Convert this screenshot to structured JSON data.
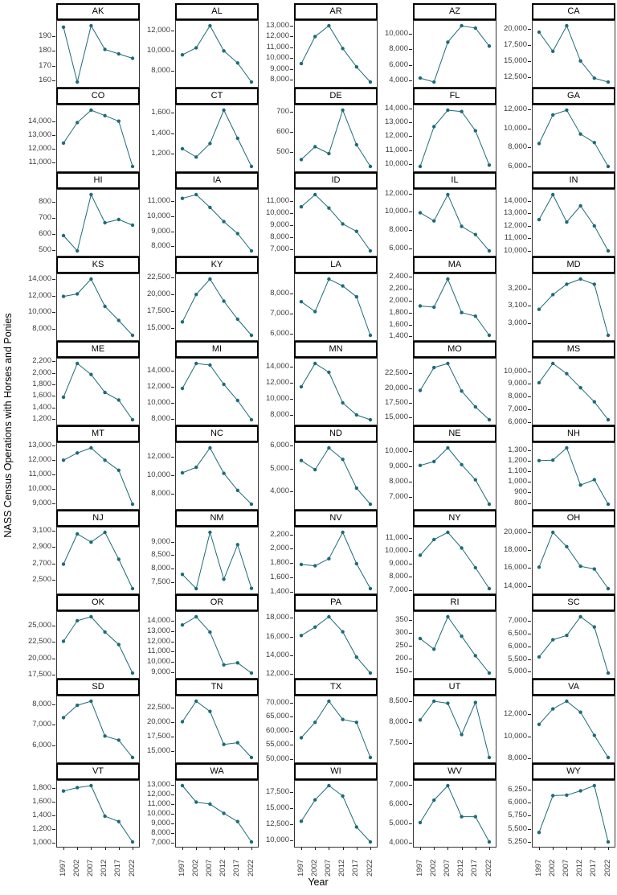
{
  "chart_data": {
    "type": "line",
    "title": "",
    "xlabel": "Year",
    "ylabel": "NASS Census Operations with Horses and Ponies",
    "x": [
      1997,
      2002,
      2007,
      2012,
      2017,
      2022
    ],
    "line_color": "#1d6b78",
    "point_color": "#1d6b78",
    "grid": "off",
    "layout": "facet-grid-5x10-free-y",
    "facets": [
      {
        "state": "AK",
        "yticks": [
          160,
          170,
          180,
          190
        ],
        "values": [
          196,
          159,
          197,
          181,
          178,
          175
        ]
      },
      {
        "state": "AL",
        "yticks": [
          8000,
          10000,
          12000
        ],
        "values": [
          9600,
          10300,
          12500,
          10000,
          8800,
          6900
        ]
      },
      {
        "state": "AR",
        "yticks": [
          8000,
          9000,
          10000,
          11000,
          12000,
          13000
        ],
        "values": [
          9500,
          12000,
          13000,
          10900,
          9200,
          7800
        ]
      },
      {
        "state": "AZ",
        "yticks": [
          4000,
          6000,
          8000,
          10000
        ],
        "values": [
          4300,
          3800,
          8900,
          11000,
          10700,
          8400
        ]
      },
      {
        "state": "CA",
        "yticks": [
          12500,
          15000,
          17500,
          20000
        ],
        "values": [
          19500,
          16500,
          20500,
          15000,
          12300,
          11700
        ]
      },
      {
        "state": "CO",
        "yticks": [
          11000,
          12000,
          13000,
          14000
        ],
        "values": [
          12400,
          13900,
          14800,
          14400,
          14000,
          10700
        ]
      },
      {
        "state": "CT",
        "yticks": [
          1200,
          1400,
          1600
        ],
        "values": [
          1250,
          1170,
          1300,
          1620,
          1350,
          1080
        ]
      },
      {
        "state": "DE",
        "yticks": [
          500,
          600,
          700
        ],
        "values": [
          460,
          525,
          490,
          710,
          535,
          425
        ]
      },
      {
        "state": "FL",
        "yticks": [
          10000,
          11000,
          12000,
          13000,
          14000
        ],
        "values": [
          9800,
          12700,
          13900,
          13800,
          12400,
          9900
        ]
      },
      {
        "state": "GA",
        "yticks": [
          6000,
          8000,
          10000,
          12000
        ],
        "values": [
          8400,
          11400,
          11900,
          9400,
          8500,
          6000
        ]
      },
      {
        "state": "HI",
        "yticks": [
          500,
          600,
          700,
          800
        ],
        "values": [
          590,
          495,
          845,
          670,
          690,
          655
        ]
      },
      {
        "state": "IA",
        "yticks": [
          8000,
          9000,
          10000,
          11000
        ],
        "values": [
          11200,
          11450,
          10600,
          9650,
          8850,
          7700
        ]
      },
      {
        "state": "ID",
        "yticks": [
          7000,
          8000,
          9000,
          10000,
          11000
        ],
        "values": [
          10500,
          11500,
          10400,
          9100,
          8500,
          6900
        ]
      },
      {
        "state": "IL",
        "yticks": [
          6000,
          8000,
          10000,
          12000
        ],
        "values": [
          9900,
          9000,
          11900,
          8400,
          7500,
          5700
        ]
      },
      {
        "state": "IN",
        "yticks": [
          10000,
          11000,
          12000,
          13000,
          14000
        ],
        "values": [
          12500,
          14500,
          12300,
          13600,
          12000,
          10000
        ]
      },
      {
        "state": "KS",
        "yticks": [
          8000,
          10000,
          12000,
          14000
        ],
        "values": [
          11900,
          12200,
          14000,
          10700,
          9000,
          7200
        ]
      },
      {
        "state": "KY",
        "yticks": [
          15000,
          17500,
          20000,
          22500
        ],
        "values": [
          15900,
          20000,
          22300,
          19000,
          16300,
          13900
        ]
      },
      {
        "state": "LA",
        "yticks": [
          6000,
          7000,
          8000
        ],
        "values": [
          7600,
          7100,
          8750,
          8400,
          7850,
          5900
        ]
      },
      {
        "state": "MA",
        "yticks": [
          1400,
          1600,
          1800,
          2000,
          2200,
          2400
        ],
        "values": [
          1910,
          1890,
          2360,
          1800,
          1740,
          1420
        ]
      },
      {
        "state": "MD",
        "yticks": [
          3000,
          3100,
          3200
        ],
        "values": [
          3080,
          3165,
          3225,
          3255,
          3225,
          2930
        ]
      },
      {
        "state": "ME",
        "yticks": [
          1200,
          1400,
          1600,
          1800,
          2000,
          2200
        ],
        "values": [
          1580,
          2160,
          1970,
          1660,
          1530,
          1190
        ]
      },
      {
        "state": "MI",
        "yticks": [
          8000,
          10000,
          12000,
          14000
        ],
        "values": [
          11800,
          14900,
          14700,
          12300,
          10300,
          7900
        ]
      },
      {
        "state": "MN",
        "yticks": [
          8000,
          10000,
          12000,
          14000
        ],
        "values": [
          11500,
          14400,
          13300,
          9500,
          8000,
          7400
        ]
      },
      {
        "state": "MO",
        "yticks": [
          15000,
          17500,
          20000,
          22500
        ],
        "values": [
          19600,
          23500,
          24200,
          19500,
          16800,
          14600
        ]
      },
      {
        "state": "MS",
        "yticks": [
          6000,
          7000,
          8000,
          9000,
          10000
        ],
        "values": [
          9100,
          10600,
          9800,
          8700,
          7600,
          6200
        ]
      },
      {
        "state": "MT",
        "yticks": [
          9000,
          10000,
          11000,
          12000,
          13000
        ],
        "values": [
          12000,
          12500,
          12850,
          12000,
          11300,
          8950
        ]
      },
      {
        "state": "NC",
        "yticks": [
          8000,
          10000,
          12000
        ],
        "values": [
          10300,
          10900,
          13000,
          10250,
          8400,
          6900
        ]
      },
      {
        "state": "ND",
        "yticks": [
          4000,
          5000,
          6000
        ],
        "values": [
          5350,
          4950,
          5900,
          5400,
          4150,
          3450
        ]
      },
      {
        "state": "NE",
        "yticks": [
          7000,
          8000,
          9000,
          10000
        ],
        "values": [
          9050,
          9300,
          10200,
          9100,
          8100,
          6500
        ]
      },
      {
        "state": "NH",
        "yticks": [
          800,
          900,
          1000,
          1100,
          1200,
          1300
        ],
        "values": [
          1200,
          1205,
          1320,
          970,
          1020,
          790
        ]
      },
      {
        "state": "NJ",
        "yticks": [
          2500,
          2700,
          2900,
          3100
        ],
        "values": [
          2690,
          3060,
          2960,
          3080,
          2750,
          2390
        ]
      },
      {
        "state": "NM",
        "yticks": [
          7500,
          8000,
          8500,
          9000
        ],
        "values": [
          7780,
          7250,
          9350,
          7600,
          8890,
          7260
        ]
      },
      {
        "state": "NV",
        "yticks": [
          1400,
          1600,
          1800,
          2000,
          2200
        ],
        "values": [
          1780,
          1760,
          1860,
          2230,
          1790,
          1440
        ]
      },
      {
        "state": "NY",
        "yticks": [
          7000,
          8000,
          9000,
          10000,
          11000
        ],
        "values": [
          9650,
          10850,
          11400,
          10200,
          8700,
          7100
        ]
      },
      {
        "state": "OH",
        "yticks": [
          14000,
          16000,
          18000,
          20000
        ],
        "values": [
          16100,
          20000,
          18400,
          16200,
          15900,
          13700
        ]
      },
      {
        "state": "OK",
        "yticks": [
          17500,
          20000,
          22500,
          25000
        ],
        "values": [
          22600,
          25700,
          26300,
          24000,
          22100,
          17800
        ]
      },
      {
        "state": "OR",
        "yticks": [
          9000,
          10000,
          11000,
          12000,
          13000,
          14000
        ],
        "values": [
          13600,
          14400,
          12900,
          9700,
          9900,
          8900
        ]
      },
      {
        "state": "PA",
        "yticks": [
          12000,
          14000,
          16000,
          18000
        ],
        "values": [
          16100,
          17000,
          18100,
          16500,
          13800,
          12100
        ]
      },
      {
        "state": "RI",
        "yticks": [
          150,
          200,
          250,
          300,
          350
        ],
        "values": [
          278,
          237,
          362,
          287,
          212,
          145
        ]
      },
      {
        "state": "SC",
        "yticks": [
          5000,
          5500,
          6000,
          6500,
          7000
        ],
        "values": [
          5580,
          6250,
          6420,
          7150,
          6750,
          4950
        ]
      },
      {
        "state": "SD",
        "yticks": [
          6000,
          7000,
          8000
        ],
        "values": [
          7350,
          7950,
          8150,
          6450,
          6250,
          5400
        ]
      },
      {
        "state": "TN",
        "yticks": [
          15000,
          17500,
          20000,
          22500
        ],
        "values": [
          20100,
          23700,
          21900,
          16100,
          16400,
          13800
        ]
      },
      {
        "state": "TX",
        "yticks": [
          50000,
          55000,
          60000,
          65000,
          70000
        ],
        "values": [
          57500,
          63000,
          70500,
          64000,
          63000,
          50500
        ]
      },
      {
        "state": "UT",
        "yticks": [
          7500,
          8000,
          8500
        ],
        "values": [
          8050,
          8500,
          8450,
          7700,
          8470,
          7150
        ]
      },
      {
        "state": "VA",
        "yticks": [
          8000,
          10000,
          12000
        ],
        "values": [
          11100,
          12500,
          13200,
          12200,
          10100,
          8100
        ]
      },
      {
        "state": "VT",
        "yticks": [
          1000,
          1200,
          1400,
          1600,
          1800
        ],
        "values": [
          1760,
          1810,
          1840,
          1390,
          1310,
          1010
        ]
      },
      {
        "state": "WA",
        "yticks": [
          7000,
          8000,
          9000,
          10000,
          11000,
          12000,
          13000
        ],
        "values": [
          12900,
          11200,
          11000,
          10050,
          9200,
          7100
        ]
      },
      {
        "state": "WI",
        "yticks": [
          10000,
          12500,
          15000,
          17500
        ],
        "values": [
          13000,
          16300,
          18500,
          16900,
          12100,
          9800
        ]
      },
      {
        "state": "WV",
        "yticks": [
          4000,
          5000,
          6000,
          7000
        ],
        "values": [
          5050,
          6200,
          6950,
          5350,
          5350,
          4050
        ]
      },
      {
        "state": "WY",
        "yticks": [
          5250,
          5500,
          5750,
          6000,
          6250
        ],
        "values": [
          5430,
          6130,
          6140,
          6220,
          6320,
          5250
        ]
      }
    ]
  }
}
